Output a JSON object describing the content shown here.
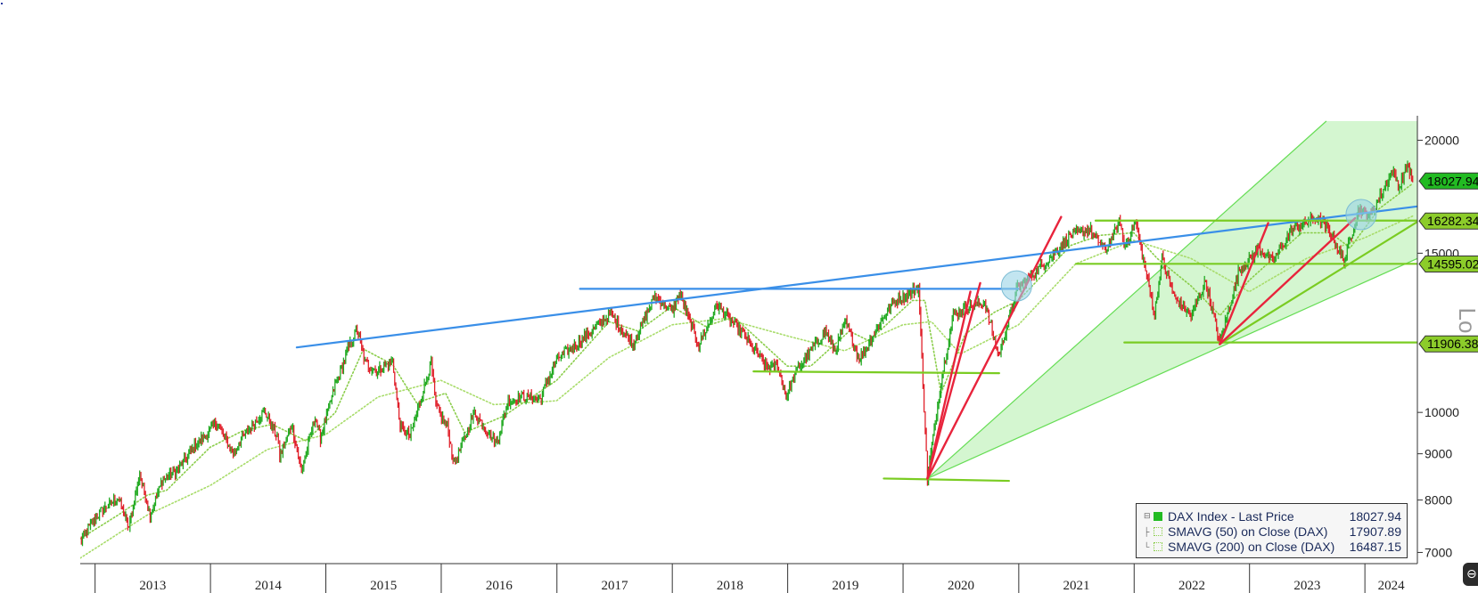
{
  "chart_data": {
    "type": "line",
    "scale": "log",
    "ylim": [
      6850,
      21000
    ],
    "y_ticks": [
      7000,
      8000,
      9000,
      10000,
      15000,
      20000
    ],
    "y_tick_labels": [
      "7000",
      "8000",
      "9000",
      "10000",
      "15000",
      "20000"
    ],
    "x_axis": {
      "start": "2012-11-15",
      "end": "2024-06-15"
    },
    "years": [
      {
        "label": "2013",
        "start": "2013-01-01",
        "end": "2014-01-01"
      },
      {
        "label": "2014",
        "start": "2014-01-01",
        "end": "2015-01-01"
      },
      {
        "label": "2015",
        "start": "2015-01-01",
        "end": "2016-01-01"
      },
      {
        "label": "2016",
        "start": "2016-01-01",
        "end": "2017-01-01"
      },
      {
        "label": "2017",
        "start": "2017-01-01",
        "end": "2018-01-01"
      },
      {
        "label": "2018",
        "start": "2018-01-01",
        "end": "2019-01-01"
      },
      {
        "label": "2019",
        "start": "2019-01-01",
        "end": "2020-01-01"
      },
      {
        "label": "2020",
        "start": "2020-01-01",
        "end": "2021-01-01"
      },
      {
        "label": "2021",
        "start": "2021-01-01",
        "end": "2022-01-01"
      },
      {
        "label": "2022",
        "start": "2022-01-01",
        "end": "2023-01-01"
      },
      {
        "label": "2023",
        "start": "2023-01-01",
        "end": "2024-01-01"
      },
      {
        "label": "2024",
        "start": "2024-01-01",
        "end": "2024-06-15"
      }
    ],
    "grid": false,
    "legend_position": "bottom-right",
    "series": [
      {
        "name": "DAX Index - Last Price",
        "last": "18027.94",
        "color": "#22aa22",
        "style": "candles",
        "points": [
          [
            "2012-11-15",
            7200
          ],
          [
            "2013-01-15",
            7750
          ],
          [
            "2013-03-15",
            8050
          ],
          [
            "2013-04-18",
            7450
          ],
          [
            "2013-05-22",
            8550
          ],
          [
            "2013-06-24",
            7700
          ],
          [
            "2013-08-01",
            8400
          ],
          [
            "2013-09-15",
            8600
          ],
          [
            "2013-11-15",
            9200
          ],
          [
            "2013-12-31",
            9550
          ],
          [
            "2014-01-20",
            9750
          ],
          [
            "2014-03-14",
            9000
          ],
          [
            "2014-04-15",
            9400
          ],
          [
            "2014-06-20",
            10050
          ],
          [
            "2014-07-31",
            9400
          ],
          [
            "2014-08-08",
            8900
          ],
          [
            "2014-09-15",
            9700
          ],
          [
            "2014-10-16",
            8600
          ],
          [
            "2014-11-28",
            9900
          ],
          [
            "2014-12-15",
            9350
          ],
          [
            "2014-12-31",
            9800
          ],
          [
            "2015-01-30",
            10700
          ],
          [
            "2015-03-15",
            11800
          ],
          [
            "2015-04-10",
            12350
          ],
          [
            "2015-05-05",
            11350
          ],
          [
            "2015-06-10",
            11100
          ],
          [
            "2015-07-31",
            11400
          ],
          [
            "2015-08-24",
            9650
          ],
          [
            "2015-09-24",
            9400
          ],
          [
            "2015-11-30",
            11350
          ],
          [
            "2015-12-15",
            10150
          ],
          [
            "2016-01-20",
            9650
          ],
          [
            "2016-02-11",
            8750
          ],
          [
            "2016-04-15",
            10000
          ],
          [
            "2016-06-24",
            9250
          ],
          [
            "2016-07-31",
            10300
          ],
          [
            "2016-09-15",
            10400
          ],
          [
            "2016-11-09",
            10350
          ],
          [
            "2016-12-31",
            11450
          ],
          [
            "2017-03-15",
            12000
          ],
          [
            "2017-06-20",
            12850
          ],
          [
            "2017-08-29",
            11900
          ],
          [
            "2017-11-07",
            13450
          ],
          [
            "2017-12-31",
            12900
          ],
          [
            "2018-01-23",
            13550
          ],
          [
            "2018-03-26",
            11850
          ],
          [
            "2018-05-22",
            13150
          ],
          [
            "2018-07-10",
            12600
          ],
          [
            "2018-08-15",
            12200
          ],
          [
            "2018-10-26",
            11200
          ],
          [
            "2018-11-30",
            11250
          ],
          [
            "2018-12-27",
            10400
          ],
          [
            "2019-01-31",
            11150
          ],
          [
            "2019-04-30",
            12300
          ],
          [
            "2019-05-31",
            11700
          ],
          [
            "2019-07-04",
            12600
          ],
          [
            "2019-08-15",
            11450
          ],
          [
            "2019-11-30",
            13250
          ],
          [
            "2020-01-15",
            13500
          ],
          [
            "2020-02-19",
            13750
          ],
          [
            "2020-03-18",
            8450
          ],
          [
            "2020-04-30",
            10850
          ],
          [
            "2020-06-08",
            12800
          ],
          [
            "2020-07-21",
            13100
          ],
          [
            "2020-09-15",
            13200
          ],
          [
            "2020-10-30",
            11550
          ],
          [
            "2020-12-28",
            13750
          ],
          [
            "2021-03-15",
            14500
          ],
          [
            "2021-06-15",
            15700
          ],
          [
            "2021-08-13",
            15950
          ],
          [
            "2021-10-04",
            15100
          ],
          [
            "2021-11-18",
            16300
          ],
          [
            "2021-11-30",
            15200
          ],
          [
            "2022-01-05",
            16250
          ],
          [
            "2022-03-07",
            12850
          ],
          [
            "2022-03-30",
            14800
          ],
          [
            "2022-05-09",
            13400
          ],
          [
            "2022-06-30",
            12800
          ],
          [
            "2022-08-15",
            13950
          ],
          [
            "2022-09-29",
            11950
          ],
          [
            "2022-11-30",
            14400
          ],
          [
            "2023-01-31",
            15150
          ],
          [
            "2023-03-15",
            14700
          ],
          [
            "2023-05-15",
            15900
          ],
          [
            "2023-07-31",
            16450
          ],
          [
            "2023-09-15",
            15800
          ],
          [
            "2023-10-27",
            14700
          ],
          [
            "2023-11-30",
            16200
          ],
          [
            "2023-12-14",
            16800
          ],
          [
            "2024-01-17",
            16450
          ],
          [
            "2024-03-28",
            18500
          ],
          [
            "2024-04-19",
            17750
          ],
          [
            "2024-05-15",
            18800
          ],
          [
            "2024-05-31",
            18027.94
          ]
        ]
      },
      {
        "name": "SMAVG (50)  on Close (DAX)",
        "last": "17907.89",
        "color": "#8acd4a",
        "style": "dotted",
        "points": [
          [
            "2012-11-15",
            7250
          ],
          [
            "2013-03-15",
            7700
          ],
          [
            "2013-06-15",
            8100
          ],
          [
            "2013-08-15",
            8200
          ],
          [
            "2013-12-31",
            9150
          ],
          [
            "2014-04-15",
            9550
          ],
          [
            "2014-07-15",
            9700
          ],
          [
            "2014-10-31",
            9300
          ],
          [
            "2015-01-31",
            10000
          ],
          [
            "2015-04-30",
            11750
          ],
          [
            "2015-07-31",
            11300
          ],
          [
            "2015-10-15",
            10250
          ],
          [
            "2016-01-15",
            10500
          ],
          [
            "2016-03-15",
            9500
          ],
          [
            "2016-07-15",
            9900
          ],
          [
            "2016-12-31",
            10850
          ],
          [
            "2017-06-15",
            12600
          ],
          [
            "2017-09-15",
            12300
          ],
          [
            "2017-12-31",
            13100
          ],
          [
            "2018-04-15",
            12450
          ],
          [
            "2018-07-15",
            12750
          ],
          [
            "2018-12-31",
            11250
          ],
          [
            "2019-03-15",
            11250
          ],
          [
            "2019-07-15",
            12300
          ],
          [
            "2019-09-15",
            12000
          ],
          [
            "2020-01-31",
            13300
          ],
          [
            "2020-03-10",
            13300
          ],
          [
            "2020-04-30",
            10500
          ],
          [
            "2020-07-15",
            12200
          ],
          [
            "2020-10-15",
            12900
          ],
          [
            "2020-12-31",
            13300
          ],
          [
            "2021-06-15",
            15300
          ],
          [
            "2021-09-15",
            15700
          ],
          [
            "2021-12-31",
            15800
          ],
          [
            "2022-03-15",
            14800
          ],
          [
            "2022-06-30",
            13800
          ],
          [
            "2022-09-30",
            12800
          ],
          [
            "2022-12-31",
            14000
          ],
          [
            "2023-06-15",
            15800
          ],
          [
            "2023-09-15",
            15800
          ],
          [
            "2023-11-15",
            15200
          ],
          [
            "2024-02-15",
            16800
          ],
          [
            "2024-05-31",
            17907.89
          ]
        ]
      },
      {
        "name": "SMAVG (200)  on Close (DAX)",
        "last": "16487.15",
        "color": "#a8dc6a",
        "style": "dotted",
        "points": [
          [
            "2012-11-15",
            6900
          ],
          [
            "2013-06-15",
            7700
          ],
          [
            "2013-12-31",
            8300
          ],
          [
            "2014-06-30",
            9100
          ],
          [
            "2014-12-31",
            9450
          ],
          [
            "2015-06-15",
            10400
          ],
          [
            "2015-12-31",
            10850
          ],
          [
            "2016-06-15",
            10200
          ],
          [
            "2016-12-31",
            10300
          ],
          [
            "2017-06-15",
            11500
          ],
          [
            "2017-12-31",
            12500
          ],
          [
            "2018-06-15",
            12700
          ],
          [
            "2018-12-31",
            12150
          ],
          [
            "2019-06-30",
            11700
          ],
          [
            "2019-12-31",
            12500
          ],
          [
            "2020-03-31",
            12600
          ],
          [
            "2020-06-30",
            11600
          ],
          [
            "2020-12-31",
            12500
          ],
          [
            "2021-06-30",
            14600
          ],
          [
            "2021-12-31",
            15500
          ],
          [
            "2022-06-30",
            14800
          ],
          [
            "2022-12-31",
            13600
          ],
          [
            "2023-06-30",
            14800
          ],
          [
            "2023-12-31",
            15600
          ],
          [
            "2024-05-31",
            16487.15
          ]
        ]
      }
    ],
    "price_tags": [
      {
        "value": 18027.94,
        "label": "18027.94",
        "color": "#22bb22"
      },
      {
        "value": 16282.34,
        "label": "16282.34",
        "color": "#8ccc2a"
      },
      {
        "value": 14595.02,
        "label": "14595.02",
        "color": "#8ccc2a"
      },
      {
        "value": 11906.38,
        "label": "11906.38",
        "color": "#8ccc2a"
      }
    ],
    "trendlines": [
      {
        "kind": "resistance",
        "color": "#3a8fe8",
        "from": [
          "2014-10-01",
          11800
        ],
        "to": [
          "2024-06-15",
          16900
        ]
      },
      {
        "kind": "resistance",
        "color": "#3a8fe8",
        "from": [
          "2017-03-15",
          13700
        ],
        "to": [
          "2020-12-31",
          13700
        ]
      },
      {
        "kind": "support",
        "color": "#7acc22",
        "from": [
          "2018-09-15",
          11100
        ],
        "to": [
          "2020-10-31",
          11050
        ]
      },
      {
        "kind": "support",
        "color": "#7acc22",
        "from": [
          "2019-11-01",
          8450
        ],
        "to": [
          "2020-12-01",
          8400
        ]
      },
      {
        "kind": "support",
        "color": "#7acc22",
        "from": [
          "2021-09-01",
          16300
        ],
        "to": [
          "2024-06-15",
          16300
        ]
      },
      {
        "kind": "support",
        "color": "#7acc22",
        "from": [
          "2021-07-01",
          14600
        ],
        "to": [
          "2024-06-15",
          14600
        ]
      },
      {
        "kind": "support",
        "color": "#7acc22",
        "from": [
          "2021-12-01",
          11950
        ],
        "to": [
          "2024-06-15",
          11950
        ]
      },
      {
        "kind": "support",
        "color": "#7acc22",
        "from": [
          "2022-09-29",
          11900
        ],
        "to": [
          "2024-06-15",
          16250
        ]
      },
      {
        "kind": "speed",
        "color": "#e8243c",
        "from": [
          "2020-03-18",
          8450
        ],
        "to": [
          "2020-08-01",
          13600
        ]
      },
      {
        "kind": "speed",
        "color": "#e8243c",
        "from": [
          "2020-03-18",
          8450
        ],
        "to": [
          "2020-09-01",
          13900
        ]
      },
      {
        "kind": "speed",
        "color": "#e8243c",
        "from": [
          "2020-03-18",
          8450
        ],
        "to": [
          "2021-05-15",
          16450
        ]
      },
      {
        "kind": "speed",
        "color": "#e8243c",
        "from": [
          "2022-09-29",
          11900
        ],
        "to": [
          "2023-03-01",
          16200
        ]
      },
      {
        "kind": "speed",
        "color": "#e8243c",
        "from": [
          "2022-09-29",
          11900
        ],
        "to": [
          "2023-12-01",
          16400
        ]
      }
    ],
    "channel": {
      "color": "#cdf5c8",
      "edge_color": "#66dd55",
      "upper": [
        [
          "2020-03-18",
          8450
        ],
        [
          "2023-09-01",
          21000
        ]
      ],
      "lower": [
        [
          "2020-03-18",
          8450
        ],
        [
          "2024-06-15",
          14800
        ]
      ]
    },
    "highlights": [
      {
        "date": "2020-12-25",
        "value": 13800
      },
      {
        "date": "2023-12-20",
        "value": 16550
      }
    ],
    "y_axis_title": "Lo"
  },
  "legend": {
    "rows": [
      {
        "name": "DAX Index - Last Price",
        "value": "18027.94",
        "swatch": "solid"
      },
      {
        "name": "SMAVG (50)  on Close (DAX)",
        "value": "17907.89",
        "swatch": "dotted"
      },
      {
        "name": "SMAVG (200)  on Close (DAX)",
        "value": "16487.15",
        "swatch": "dotted"
      }
    ]
  }
}
